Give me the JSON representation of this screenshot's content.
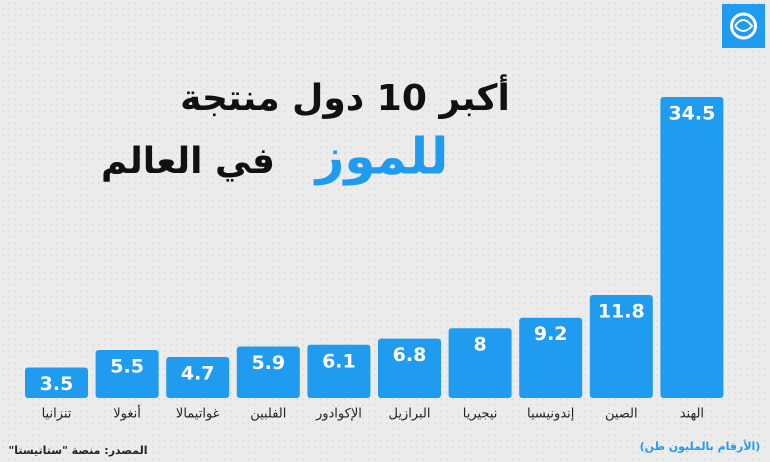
{
  "chart_data": {
    "type": "bar",
    "title": "أكبر 10 دول منتجة",
    "title_highlight": "للموز",
    "title_rest": "في العالم",
    "note": "(الأرقام بالمليون طن)",
    "source": "المصدر: منصة \"ستاتيستا\"",
    "categories": [
      "تنزانيا",
      "أنغولا",
      "غواتيمالا",
      "الفلبين",
      "الإكوادور",
      "البرازيل",
      "نيجيريا",
      "إندونيسيا",
      "الصين",
      "الهند"
    ],
    "values": [
      3.5,
      5.5,
      4.7,
      5.9,
      6.1,
      6.8,
      8,
      9.2,
      11.8,
      34.5
    ],
    "color": "#1f9cf0"
  }
}
